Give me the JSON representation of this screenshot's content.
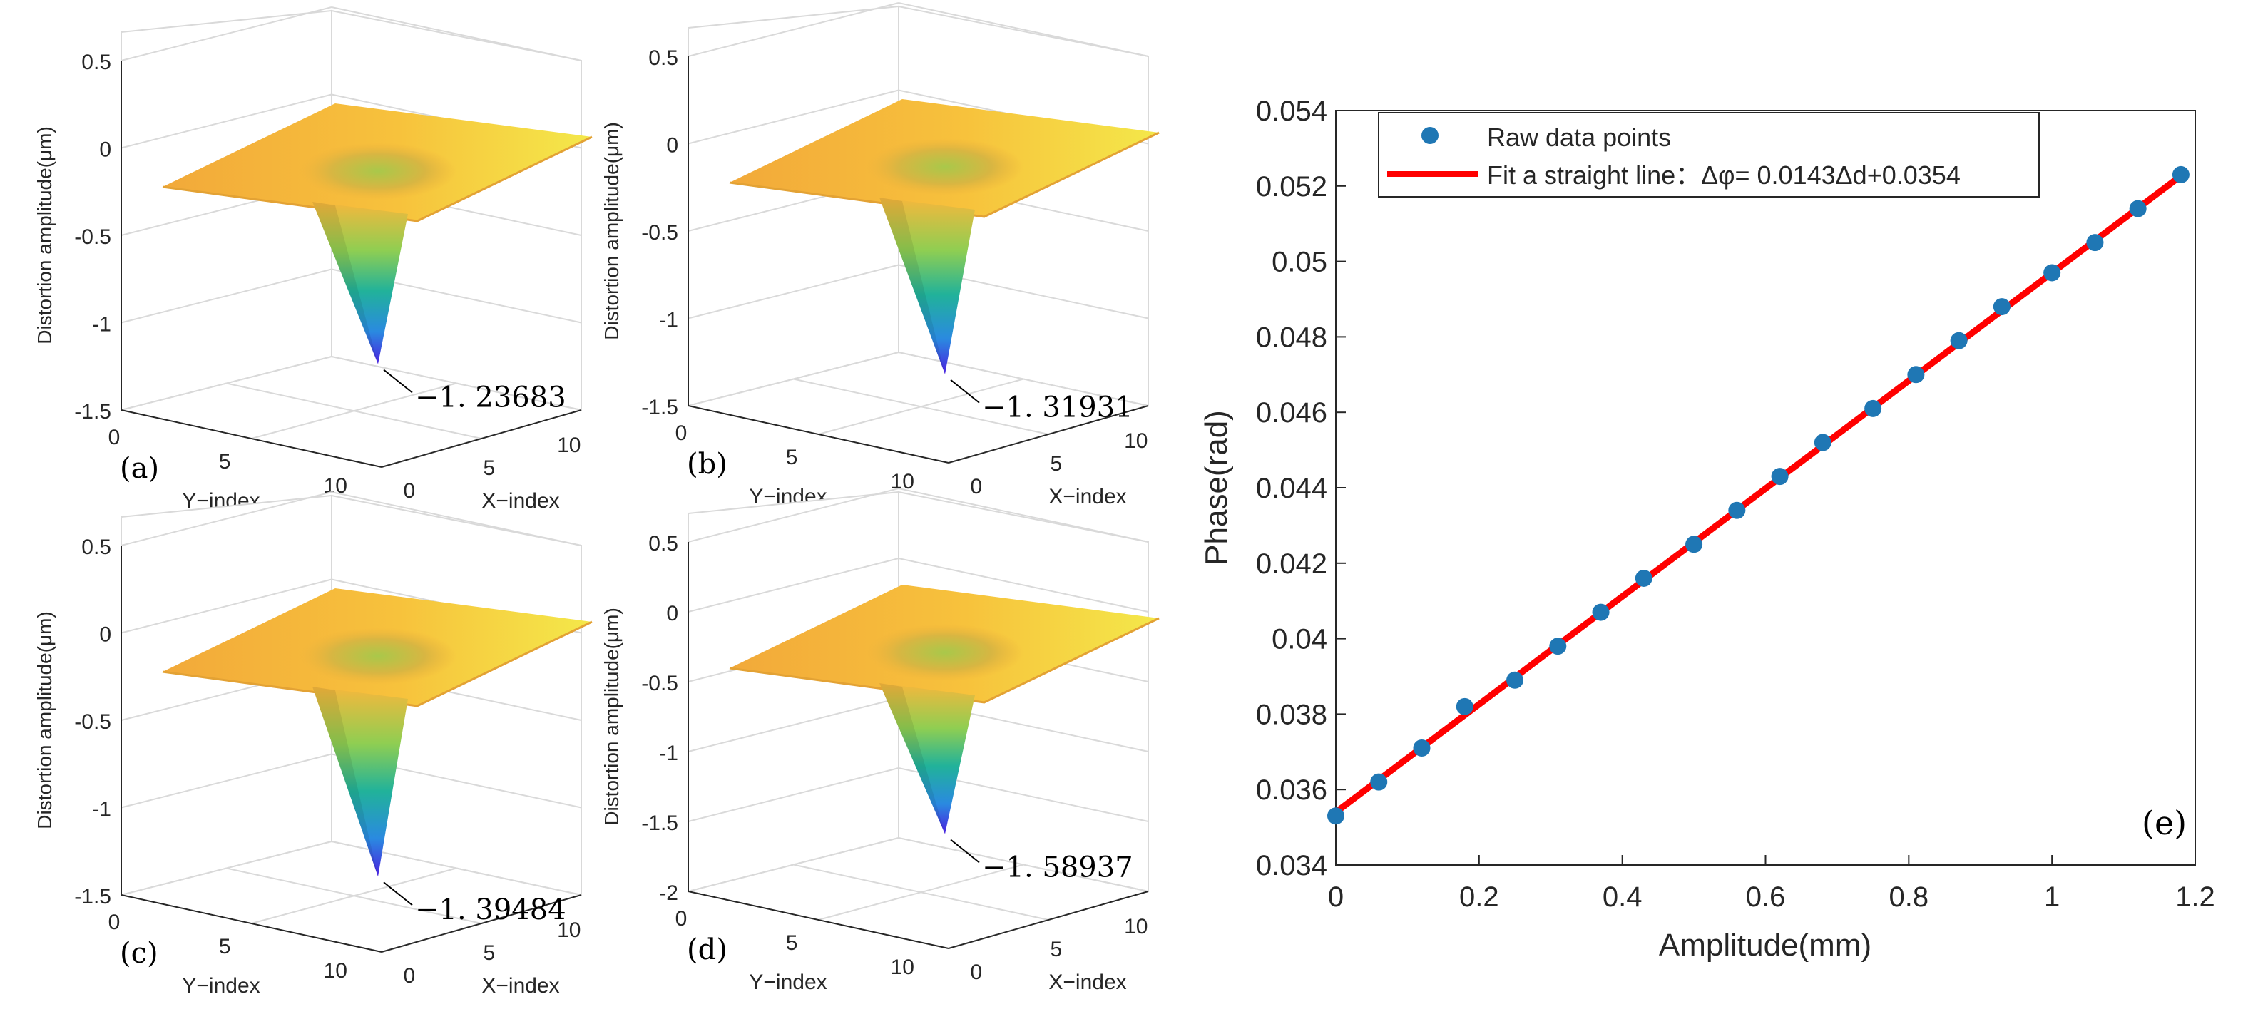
{
  "chart_data": [
    {
      "type": "surface3d",
      "panel_label": "(a)",
      "zlabel": "Distortion amplitude(μm)",
      "xlabel": "X−index",
      "ylabel": "Y−index",
      "zticks": [
        "0.5",
        "0",
        "-0.5",
        "-1",
        "-1.5"
      ],
      "zlim": [
        -1.5,
        0.5
      ],
      "xticks": [
        "0",
        "5",
        "10"
      ],
      "yticks": [
        "0",
        "5",
        "10"
      ],
      "min_annotation": "−1. 23683",
      "min_value": -1.23683
    },
    {
      "type": "surface3d",
      "panel_label": "(b)",
      "zlabel": "Distortion amplitude(μm)",
      "xlabel": "X−index",
      "ylabel": "Y−index",
      "zticks": [
        "0.5",
        "0",
        "-0.5",
        "-1",
        "-1.5"
      ],
      "zlim": [
        -1.5,
        0.5
      ],
      "xticks": [
        "0",
        "5",
        "10"
      ],
      "yticks": [
        "0",
        "5",
        "10"
      ],
      "min_annotation": "−1. 31931",
      "min_value": -1.31931
    },
    {
      "type": "surface3d",
      "panel_label": "(c)",
      "zlabel": "Distortion amplitude(μm)",
      "xlabel": "X−index",
      "ylabel": "Y−index",
      "zticks": [
        "0.5",
        "0",
        "-0.5",
        "-1",
        "-1.5"
      ],
      "zlim": [
        -1.5,
        0.5
      ],
      "xticks": [
        "0",
        "5",
        "10"
      ],
      "yticks": [
        "0",
        "5",
        "10"
      ],
      "min_annotation": "−1. 39484",
      "min_value": -1.39484
    },
    {
      "type": "surface3d",
      "panel_label": "(d)",
      "zlabel": "Distortion amplitude(μm)",
      "xlabel": "X−index",
      "ylabel": "Y−index",
      "zticks": [
        "0.5",
        "0",
        "-0.5",
        "-1",
        "-1.5",
        "-2"
      ],
      "zlim": [
        -2,
        0.5
      ],
      "xticks": [
        "0",
        "5",
        "10"
      ],
      "yticks": [
        "0",
        "5",
        "10"
      ],
      "min_annotation": "−1. 58937",
      "min_value": -1.58937
    },
    {
      "type": "scatter",
      "panel_label": "(e)",
      "xlabel": "Amplitude(mm)",
      "ylabel": "Phase(rad)",
      "xlim": [
        0,
        1.2
      ],
      "ylim": [
        0.034,
        0.054
      ],
      "xticks": [
        "0",
        "0.2",
        "0.4",
        "0.6",
        "0.8",
        "1",
        "1.2"
      ],
      "yticks": [
        "0.034",
        "0.036",
        "0.038",
        "0.04",
        "0.042",
        "0.044",
        "0.046",
        "0.048",
        "0.05",
        "0.052",
        "0.054"
      ],
      "grid": false,
      "legend": {
        "placement": "top-left",
        "entries": [
          "Raw data points",
          "Fit a straight line：Δφ= 0.0143Δd+0.0354"
        ]
      },
      "series": [
        {
          "name": "Raw data points",
          "x": [
            0,
            0.06,
            0.12,
            0.18,
            0.25,
            0.31,
            0.37,
            0.43,
            0.5,
            0.56,
            0.62,
            0.68,
            0.75,
            0.81,
            0.87,
            0.93,
            1.0,
            1.06,
            1.12,
            1.18
          ],
          "y": [
            0.0353,
            0.0362,
            0.0371,
            0.0382,
            0.0389,
            0.0398,
            0.0407,
            0.0416,
            0.0425,
            0.0434,
            0.0443,
            0.0452,
            0.0461,
            0.047,
            0.0479,
            0.0488,
            0.0497,
            0.0505,
            0.0514,
            0.0523
          ]
        },
        {
          "name": "Fit a straight line：Δφ= 0.0143Δd+0.0354",
          "x": [
            0,
            1.18
          ],
          "y": [
            0.0354,
            0.05227
          ]
        }
      ],
      "colors": {
        "points": "#1f77b4",
        "fit": "#ff0000"
      }
    }
  ]
}
